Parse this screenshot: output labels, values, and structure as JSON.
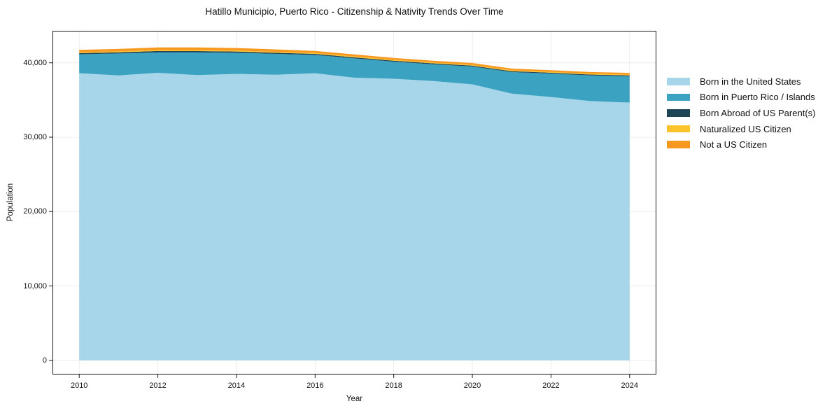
{
  "title": "Hatillo Municipio, Puerto Rico - Citizenship & Nativity Trends Over Time",
  "chart_data": {
    "type": "area",
    "stacked": true,
    "title": "Hatillo Municipio, Puerto Rico - Citizenship & Nativity Trends Over Time",
    "xlabel": "Year",
    "ylabel": "Population",
    "x": [
      2010,
      2011,
      2012,
      2013,
      2014,
      2015,
      2016,
      2017,
      2018,
      2019,
      2020,
      2021,
      2022,
      2023,
      2024
    ],
    "series": [
      {
        "name": "Born in the United States",
        "color": "#a7d5e9",
        "values": [
          38600,
          38300,
          38650,
          38350,
          38500,
          38400,
          38600,
          38000,
          37850,
          37550,
          37100,
          35850,
          35400,
          34850,
          34650
        ]
      },
      {
        "name": "Born in Puerto Rico / Islands",
        "color": "#3ba3c1",
        "values": [
          2550,
          2950,
          2750,
          3050,
          2850,
          2800,
          2450,
          2600,
          2300,
          2250,
          2400,
          2900,
          3150,
          3450,
          3530
        ]
      },
      {
        "name": "Born Abroad of US Parent(s)",
        "color": "#1f4456",
        "values": [
          150,
          160,
          180,
          170,
          160,
          150,
          140,
          130,
          130,
          120,
          120,
          120,
          120,
          120,
          120
        ]
      },
      {
        "name": "Naturalized US Citizen",
        "color": "#fcc32d",
        "values": [
          120,
          130,
          140,
          140,
          130,
          130,
          120,
          120,
          110,
          110,
          110,
          110,
          110,
          110,
          110
        ]
      },
      {
        "name": "Not a US Citizen",
        "color": "#f7981f",
        "values": [
          320,
          330,
          350,
          350,
          340,
          320,
          280,
          270,
          260,
          250,
          240,
          240,
          230,
          230,
          230
        ]
      }
    ],
    "xticks": [
      2010,
      2012,
      2014,
      2016,
      2018,
      2020,
      2022,
      2024
    ],
    "yticks": [
      0,
      10000,
      20000,
      30000,
      40000
    ],
    "ytick_labels": [
      "0",
      "10,000",
      "20,000",
      "30,000",
      "40,000"
    ],
    "xlim": [
      2009.32,
      2024.68
    ],
    "ylim": [
      -1900,
      44300
    ],
    "grid": true,
    "grid_color": "#ececec",
    "spine_color": "#1a1a1a",
    "legend_position": "right-outside"
  }
}
